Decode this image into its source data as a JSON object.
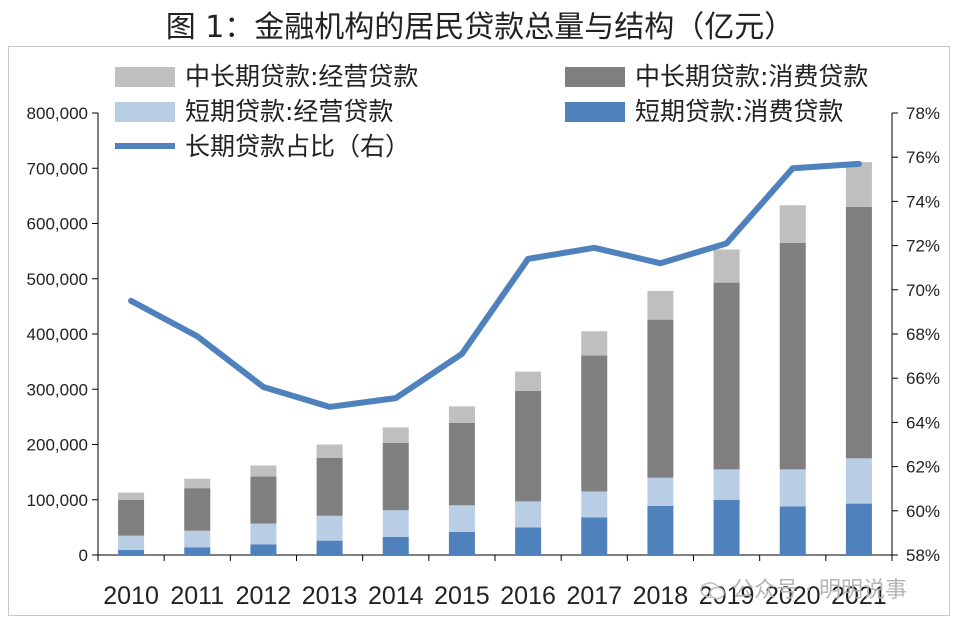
{
  "title": "图 1：金融机构的居民贷款总量与结构（亿元）",
  "watermark": "公众号 · 明明说事",
  "chart_data": {
    "type": "bar",
    "stacked": true,
    "categories": [
      "2010",
      "2011",
      "2012",
      "2013",
      "2014",
      "2015",
      "2016",
      "2017",
      "2018",
      "2019",
      "2020",
      "2021"
    ],
    "series": [
      {
        "name": "短期贷款:消费贷款",
        "color": "#4f81bd",
        "values": [
          9000,
          14000,
          19000,
          26000,
          33000,
          42000,
          50000,
          68000,
          89000,
          100000,
          88000,
          93000
        ]
      },
      {
        "name": "短期贷款:经营贷款",
        "color": "#b9cde5",
        "values": [
          26000,
          30000,
          38000,
          45000,
          48000,
          48000,
          47000,
          47000,
          51000,
          55000,
          67000,
          82000
        ]
      },
      {
        "name": "中长期贷款:消费贷款",
        "color": "#7f7f7f",
        "values": [
          65000,
          77000,
          85000,
          105000,
          122000,
          149000,
          200000,
          246000,
          286000,
          338000,
          410000,
          455000
        ]
      },
      {
        "name": "中长期贷款:经营贷款",
        "color": "#bfbfbf",
        "values": [
          13000,
          17000,
          20000,
          24000,
          28000,
          30000,
          35000,
          44000,
          52000,
          60000,
          68000,
          81000
        ]
      }
    ],
    "line": {
      "name": "长期贷款占比（右）",
      "color": "#4f81bd",
      "values": [
        69.5,
        67.9,
        65.6,
        64.7,
        65.1,
        67.1,
        71.4,
        71.9,
        71.2,
        72.1,
        75.5,
        75.7
      ]
    },
    "y_left": {
      "min": 0,
      "max": 800000,
      "step": 100000,
      "ticks": [
        "0",
        "100,000",
        "200,000",
        "300,000",
        "400,000",
        "500,000",
        "600,000",
        "700,000",
        "800,000"
      ]
    },
    "y_right": {
      "min": 58,
      "max": 78,
      "step": 2,
      "ticks": [
        "58%",
        "60%",
        "62%",
        "64%",
        "66%",
        "68%",
        "70%",
        "72%",
        "74%",
        "76%",
        "78%"
      ]
    },
    "legend": [
      {
        "label": "中长期贷款:经营贷款",
        "kind": "box",
        "color": "#bfbfbf"
      },
      {
        "label": "中长期贷款:消费贷款",
        "kind": "box",
        "color": "#7f7f7f"
      },
      {
        "label": "短期贷款:经营贷款",
        "kind": "box",
        "color": "#b9cde5"
      },
      {
        "label": "短期贷款:消费贷款",
        "kind": "box",
        "color": "#4f81bd"
      },
      {
        "label": "长期贷款占比（右）",
        "kind": "line",
        "color": "#4f81bd"
      }
    ],
    "legend_placement": "top",
    "grid": false
  }
}
